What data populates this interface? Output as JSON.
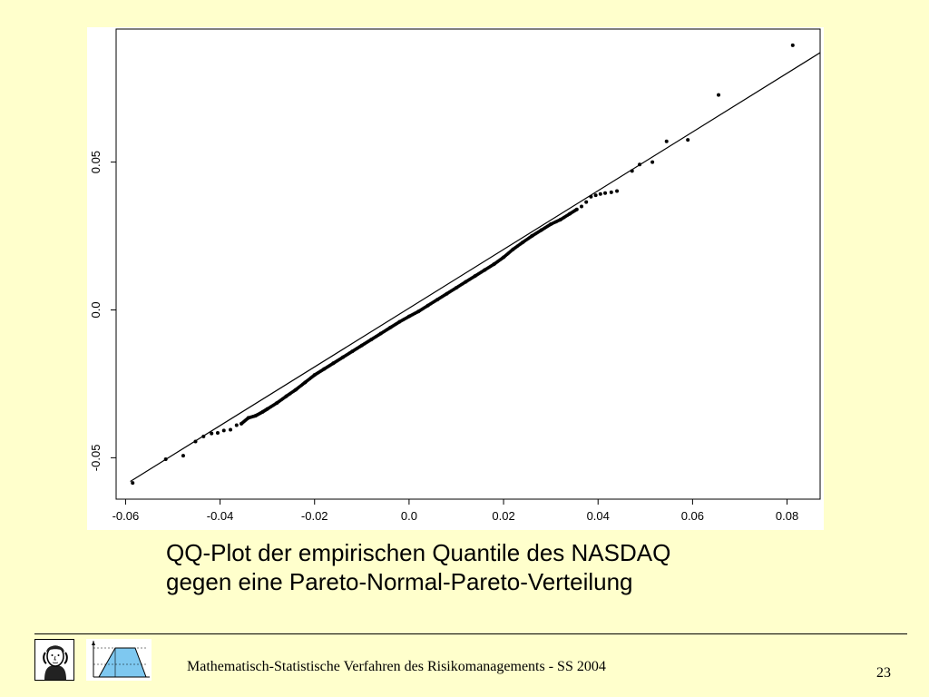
{
  "slide": {
    "caption_line1": "QQ-Plot der empirischen Quantile des NASDAQ",
    "caption_line2": "gegen eine Pareto-Normal-Pareto-Verteilung",
    "footer_text": "Mathematisch-Statistische Verfahren des Risikomanagements - SS 2004",
    "page_number": "23",
    "background_color": "#FFFFCC"
  },
  "chart_data": {
    "type": "scatter",
    "title": "",
    "xlabel": "",
    "ylabel": "",
    "xlim": [
      -0.062,
      0.087
    ],
    "ylim": [
      -0.064,
      0.095
    ],
    "x_ticks": [
      -0.06,
      -0.04,
      -0.02,
      0.0,
      0.02,
      0.04,
      0.06,
      0.08
    ],
    "x_tick_labels": [
      "-0.06",
      "-0.04",
      "-0.02",
      "0.0",
      "0.02",
      "0.04",
      "0.06",
      "0.08"
    ],
    "y_ticks": [
      -0.05,
      0.0,
      0.05
    ],
    "y_tick_labels": [
      "-0.05",
      "0.0",
      "0.05"
    ],
    "grid": false,
    "reference_line": {
      "x": [
        -0.059,
        0.087
      ],
      "y": [
        -0.058,
        0.087
      ]
    },
    "series": [
      {
        "points": [
          [
            -0.0585,
            -0.0585
          ],
          [
            -0.0515,
            -0.0505
          ],
          [
            -0.0478,
            -0.0493
          ],
          [
            -0.0452,
            -0.0445
          ],
          [
            -0.0435,
            -0.0428
          ],
          [
            -0.0418,
            -0.0418
          ],
          [
            -0.0405,
            -0.0416
          ],
          [
            -0.0392,
            -0.0408
          ],
          [
            -0.0378,
            -0.0405
          ],
          [
            -0.0365,
            -0.039
          ],
          [
            -0.0355,
            -0.0385
          ],
          [
            -0.034,
            -0.0365
          ],
          [
            -0.0325,
            -0.0358
          ],
          [
            -0.031,
            -0.0345
          ],
          [
            -0.03,
            -0.0335
          ],
          [
            -0.028,
            -0.0315
          ],
          [
            -0.026,
            -0.0292
          ],
          [
            -0.024,
            -0.027
          ],
          [
            -0.022,
            -0.0245
          ],
          [
            -0.02,
            -0.022
          ],
          [
            -0.018,
            -0.02
          ],
          [
            -0.016,
            -0.018
          ],
          [
            -0.014,
            -0.016
          ],
          [
            -0.012,
            -0.014
          ],
          [
            -0.01,
            -0.012
          ],
          [
            -0.008,
            -0.01
          ],
          [
            -0.006,
            -0.008
          ],
          [
            -0.004,
            -0.006
          ],
          [
            -0.002,
            -0.004
          ],
          [
            0.0,
            -0.0022
          ],
          [
            0.002,
            -0.0005
          ],
          [
            0.004,
            0.0015
          ],
          [
            0.006,
            0.0035
          ],
          [
            0.008,
            0.0055
          ],
          [
            0.01,
            0.0075
          ],
          [
            0.012,
            0.0095
          ],
          [
            0.014,
            0.0115
          ],
          [
            0.016,
            0.0135
          ],
          [
            0.018,
            0.0155
          ],
          [
            0.02,
            0.0178
          ],
          [
            0.022,
            0.0205
          ],
          [
            0.024,
            0.0228
          ],
          [
            0.026,
            0.025
          ],
          [
            0.028,
            0.027
          ],
          [
            0.03,
            0.029
          ],
          [
            0.032,
            0.0305
          ],
          [
            0.034,
            0.0325
          ],
          [
            0.0355,
            0.034
          ],
          [
            0.0365,
            0.035
          ],
          [
            0.0375,
            0.0365
          ],
          [
            0.0385,
            0.0383
          ],
          [
            0.0395,
            0.0388
          ],
          [
            0.0405,
            0.0392
          ],
          [
            0.0415,
            0.0395
          ],
          [
            0.0428,
            0.0398
          ],
          [
            0.044,
            0.0402
          ],
          [
            0.0472,
            0.047
          ],
          [
            0.0488,
            0.0492
          ],
          [
            0.0515,
            0.05
          ],
          [
            0.0545,
            0.057
          ],
          [
            0.059,
            0.0575
          ],
          [
            0.0655,
            0.0727
          ],
          [
            0.0812,
            0.0895
          ]
        ]
      }
    ]
  }
}
